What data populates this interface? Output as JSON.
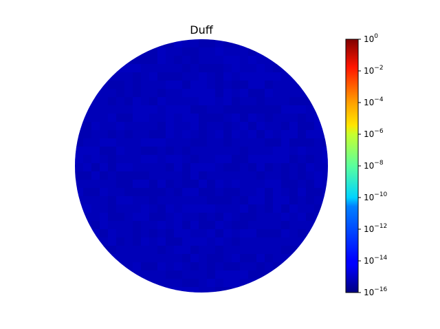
{
  "chart_data": {
    "type": "heatmap",
    "shape": "disk",
    "title": "Duff",
    "xlabel": "",
    "ylabel": "",
    "colormap": "jet",
    "colorbar": {
      "scale": "log",
      "range": [
        1e-16,
        1
      ],
      "tick_base": "10",
      "tick_exponents": [
        "0",
        "−2",
        "−4",
        "−6",
        "−8",
        "−10",
        "−12",
        "−14",
        "−16"
      ],
      "tick_values": [
        1,
        0.01,
        0.0001,
        1e-06,
        1e-08,
        1e-10,
        1e-12,
        1e-14,
        1e-16
      ]
    },
    "field_level": 1e-15,
    "field_color": "#0000b8",
    "grid": false
  }
}
